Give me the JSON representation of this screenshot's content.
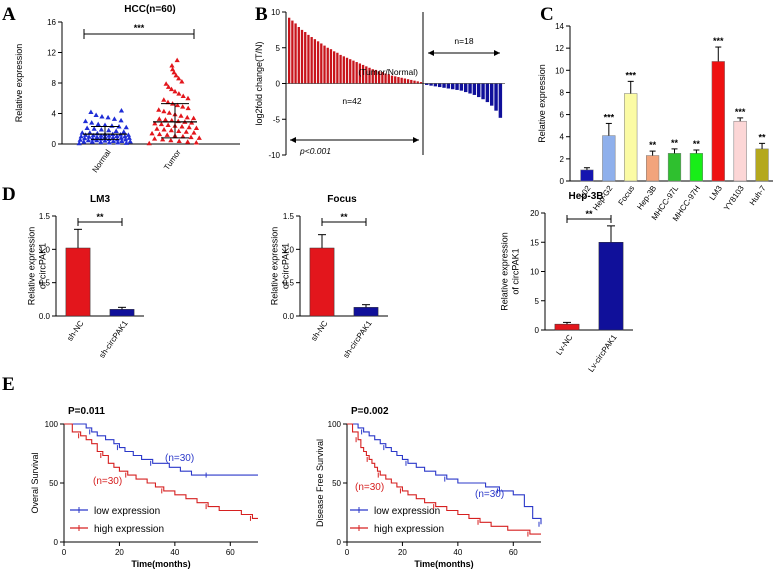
{
  "colors": {
    "blue": "#1f2dd6",
    "red": "#e3161c",
    "darkblue": "#10109a",
    "darkred": "#c8141b",
    "survival_blue": "#2b38c9",
    "survival_red": "#d62020"
  },
  "panel_labels": {
    "a": "A",
    "b": "B",
    "c": "C",
    "d": "D",
    "e": "E"
  },
  "chart_data": [
    {
      "id": "A",
      "type": "scatter",
      "title": "HCC(n=60)",
      "ylabel": "Relative expression",
      "xlabel": "",
      "categories": [
        "Normal",
        "Tumor"
      ],
      "ylim": [
        0,
        16
      ],
      "yticks": [
        0,
        4,
        8,
        12,
        16
      ],
      "significance": "***",
      "groups": [
        {
          "name": "Normal",
          "mean": 1.3,
          "sd_upper": 2.3,
          "sd_lower": 0.6,
          "values": [
            0.1,
            0.15,
            0.2,
            0.2,
            0.25,
            0.3,
            0.3,
            0.35,
            0.4,
            0.4,
            0.45,
            0.5,
            0.5,
            0.55,
            0.6,
            0.6,
            0.65,
            0.7,
            0.7,
            0.75,
            0.8,
            0.8,
            0.85,
            0.9,
            0.9,
            0.95,
            1.0,
            1.0,
            1.05,
            1.1,
            1.1,
            1.15,
            1.2,
            1.2,
            1.25,
            1.3,
            1.3,
            1.4,
            1.5,
            1.5,
            1.6,
            1.7,
            1.8,
            1.9,
            2.0,
            2.1,
            2.2,
            2.3,
            2.4,
            2.5,
            2.6,
            2.8,
            3.0,
            3.1,
            3.3,
            3.5,
            3.6,
            3.8,
            4.2,
            4.4
          ]
        },
        {
          "name": "Tumor",
          "mean": 2.9,
          "sd_upper": 5.3,
          "sd_lower": 0.8,
          "values": [
            0.1,
            0.2,
            0.3,
            0.4,
            0.5,
            0.6,
            0.7,
            0.8,
            0.9,
            1.0,
            1.1,
            1.2,
            1.3,
            1.4,
            1.5,
            1.6,
            1.7,
            1.8,
            1.9,
            2.0,
            2.1,
            2.2,
            2.3,
            2.4,
            2.5,
            2.6,
            2.7,
            2.8,
            2.9,
            3.0,
            3.1,
            3.2,
            3.3,
            3.4,
            3.5,
            3.7,
            3.9,
            4.1,
            4.3,
            4.5,
            4.7,
            4.9,
            5.1,
            5.3,
            5.5,
            5.8,
            6.0,
            6.3,
            6.6,
            6.9,
            7.2,
            7.5,
            7.9,
            8.2,
            8.6,
            9.0,
            9.4,
            9.8,
            10.3,
            11.0
          ]
        }
      ]
    },
    {
      "id": "B",
      "type": "bar",
      "ylabel": "log2fold change(T/N)",
      "ylim": [
        -10,
        10
      ],
      "yticks": [
        -10,
        -5,
        0,
        5,
        10
      ],
      "annotations": {
        "ratio": "(Tumor/Normal)",
        "n_up": "n=42",
        "n_down": "n=18",
        "p": "p<0.001"
      },
      "up_values": [
        9.2,
        8.8,
        8.4,
        7.9,
        7.5,
        7.2,
        6.8,
        6.5,
        6.2,
        5.9,
        5.6,
        5.3,
        5.0,
        4.8,
        4.5,
        4.3,
        4.0,
        3.8,
        3.6,
        3.4,
        3.2,
        3.0,
        2.8,
        2.6,
        2.4,
        2.2,
        2.0,
        1.9,
        1.7,
        1.6,
        1.4,
        1.3,
        1.1,
        1.0,
        0.9,
        0.8,
        0.7,
        0.6,
        0.5,
        0.4,
        0.3,
        0.2
      ],
      "down_values": [
        -0.2,
        -0.3,
        -0.4,
        -0.5,
        -0.6,
        -0.7,
        -0.8,
        -0.9,
        -1.0,
        -1.2,
        -1.4,
        -1.6,
        -1.9,
        -2.2,
        -2.6,
        -3.1,
        -3.8,
        -4.8
      ]
    },
    {
      "id": "C",
      "type": "bar",
      "ylabel": "Relative expression",
      "ylim": [
        0,
        14
      ],
      "yticks": [
        0,
        2,
        4,
        6,
        8,
        10,
        12,
        14
      ],
      "categories": [
        "L02",
        "Hep-G2",
        "Focus",
        "Hep-3B",
        "MHCC-97L",
        "MHCC-97H",
        "LM3",
        "YY8103",
        "Huh-7"
      ],
      "values": [
        1.0,
        4.1,
        7.9,
        2.3,
        2.5,
        2.5,
        10.8,
        5.4,
        2.9
      ],
      "errors": [
        0.2,
        1.1,
        1.1,
        0.4,
        0.4,
        0.3,
        1.3,
        0.3,
        0.5
      ],
      "significance": [
        "",
        "***",
        "***",
        "**",
        "**",
        "**",
        "***",
        "***",
        "**"
      ],
      "bar_colors": [
        "#1515b0",
        "#8fb0ec",
        "#fbfba4",
        "#f2a47c",
        "#2fc02f",
        "#18ee18",
        "#ee1111",
        "#fcd6d6",
        "#b4a81e"
      ]
    },
    {
      "id": "D1",
      "type": "bar",
      "title": "LM3",
      "ylabel": "Relative expression\nof circPAK1",
      "ylim": [
        0,
        1.5
      ],
      "yticks": [
        0.0,
        0.5,
        1.0,
        1.5
      ],
      "categories": [
        "sh-NC",
        "sh-circPAK1"
      ],
      "values": [
        1.02,
        0.1
      ],
      "errors": [
        0.28,
        0.03
      ],
      "significance": "**"
    },
    {
      "id": "D2",
      "type": "bar",
      "title": "Focus",
      "ylabel": "Relative expression\nof circPAK1",
      "ylim": [
        0,
        1.5
      ],
      "yticks": [
        0.0,
        0.5,
        1.0,
        1.5
      ],
      "categories": [
        "sh-NC",
        "sh-circPAK1"
      ],
      "values": [
        1.02,
        0.13
      ],
      "errors": [
        0.2,
        0.04
      ],
      "significance": "**"
    },
    {
      "id": "D3",
      "type": "bar",
      "title": "Hep-3B",
      "ylabel": "Relative expression\nof circPAK1",
      "ylim": [
        0,
        20
      ],
      "yticks": [
        0,
        5,
        10,
        15,
        20
      ],
      "categories": [
        "Lv-NC",
        "Lv-circPAK1"
      ],
      "values": [
        1.0,
        15.0
      ],
      "errors": [
        0.3,
        2.8
      ],
      "significance": "**"
    },
    {
      "id": "E1",
      "type": "line",
      "ylabel": "Overal Survival",
      "xlabel": "Time(months)",
      "xlim": [
        0,
        70
      ],
      "xticks": [
        0,
        20,
        40,
        60
      ],
      "ylim": [
        0,
        100
      ],
      "yticks": [
        0,
        50,
        100
      ],
      "p": "P=0.011",
      "series": [
        {
          "name": "low expression",
          "n_label": "(n=30)",
          "x": [
            0,
            8,
            10,
            12,
            15,
            18,
            20,
            22,
            25,
            28,
            32,
            38,
            42,
            46,
            52,
            58,
            64,
            70
          ],
          "y": [
            100,
            96.7,
            93.3,
            90,
            86.7,
            83.3,
            80,
            76.7,
            73.3,
            70,
            66.7,
            63.3,
            60,
            56.7,
            56.7,
            56.7,
            56.7,
            56.7
          ]
        },
        {
          "name": "high expression",
          "n_label": "(n=30)",
          "x": [
            0,
            3,
            6,
            8,
            10,
            12,
            14,
            16,
            18,
            20,
            23,
            26,
            30,
            33,
            36,
            40,
            44,
            48,
            52,
            56,
            60,
            64,
            68,
            70
          ],
          "y": [
            100,
            93.3,
            90,
            86.7,
            83.3,
            76.7,
            73.3,
            66.7,
            63.3,
            60,
            56.7,
            53.3,
            50,
            46.7,
            43.3,
            40,
            36.7,
            33.3,
            30,
            26.7,
            26.7,
            23.3,
            20,
            20
          ]
        }
      ]
    },
    {
      "id": "E2",
      "type": "line",
      "ylabel": "Disease Free Survival",
      "xlabel": "Time(months)",
      "xlim": [
        0,
        70
      ],
      "xticks": [
        0,
        20,
        40,
        60
      ],
      "ylim": [
        0,
        100
      ],
      "yticks": [
        0,
        50,
        100
      ],
      "p": "P=0.002",
      "series": [
        {
          "name": "low expression",
          "n_label": "(n=30)",
          "x": [
            0,
            4,
            6,
            8,
            10,
            12,
            14,
            16,
            18,
            20,
            22,
            25,
            28,
            32,
            36,
            40,
            45,
            50,
            55,
            60,
            64,
            67,
            70
          ],
          "y": [
            100,
            96.7,
            93.3,
            90,
            86.7,
            83.3,
            80,
            76.7,
            73.3,
            70,
            66.7,
            63.3,
            60,
            56.7,
            53.3,
            50,
            50,
            46.7,
            43.3,
            40,
            30,
            20,
            15
          ]
        },
        {
          "name": "high expression",
          "n_label": "(n=30)",
          "x": [
            0,
            2,
            4,
            5,
            6,
            7,
            8,
            9,
            10,
            11,
            12,
            14,
            16,
            18,
            20,
            22,
            25,
            28,
            32,
            36,
            40,
            44,
            48,
            52,
            58,
            62,
            66,
            70
          ],
          "y": [
            100,
            93.3,
            86.7,
            80,
            76.7,
            73.3,
            70,
            66.7,
            63.3,
            60,
            56.7,
            53.3,
            50,
            46.7,
            43.3,
            40,
            36.7,
            33.3,
            30,
            26.7,
            23.3,
            20,
            16.7,
            13.3,
            10,
            10,
            6.7,
            6.7
          ]
        }
      ]
    }
  ]
}
